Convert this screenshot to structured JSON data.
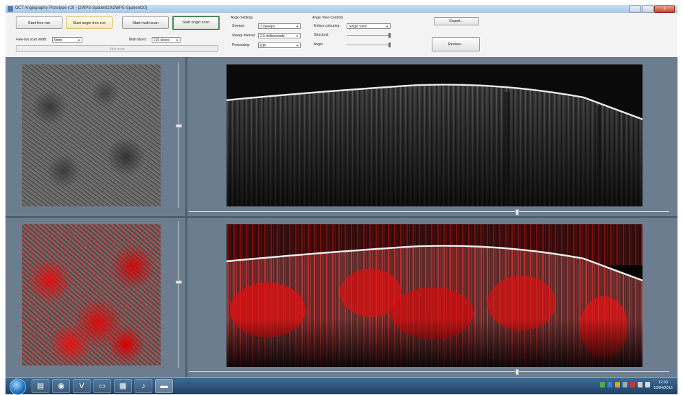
{
  "window": {
    "title": "OCT Angiography Prototype v10 - [2WPS-Spatient20/2WPS-Spatient20]",
    "minimize_label": "",
    "maximize_label": "",
    "close_label": "x"
  },
  "scan_buttons": {
    "start_free_run": "Start free-run",
    "start_angio_free_run": "Start angio free-run",
    "start_multi_scan": "Start multi scan",
    "start_angio_scan": "Start angio scan",
    "stop_scan": "Stop scan"
  },
  "scan_settings": {
    "free_run_width_label": "Free-run scan width:",
    "free_run_width_value": "6mm",
    "multi_slices_label": "Multi slices:",
    "multi_slices_value": "120 slices"
  },
  "angio_settings": {
    "group_label": "Angio Settings",
    "sweeps_label": "Sweeps:",
    "sweeps_value": "2 sweeps",
    "sweep_interval_label": "Sweep interval:",
    "sweep_interval_value": "2.5 milliseconds",
    "processing_label": "Processing:",
    "processing_value": "CM"
  },
  "angio_view_controls": {
    "group_label": "Angio View Controls",
    "enface_colouring_label": "Enface colouring:",
    "enface_colouring_value": "Single Slice",
    "structural_label": "Structural:",
    "angio_label": "Angio:"
  },
  "actions": {
    "export_label": "Export...",
    "review_label": "Review..."
  },
  "taskbar": {
    "clock_time": "12:03",
    "clock_date": "13/04/2015",
    "app_v_label": "V"
  },
  "colors": {
    "panel_bg": "#6e8193",
    "angio_red": "#e01010",
    "taskbar": "#2a4f78"
  }
}
